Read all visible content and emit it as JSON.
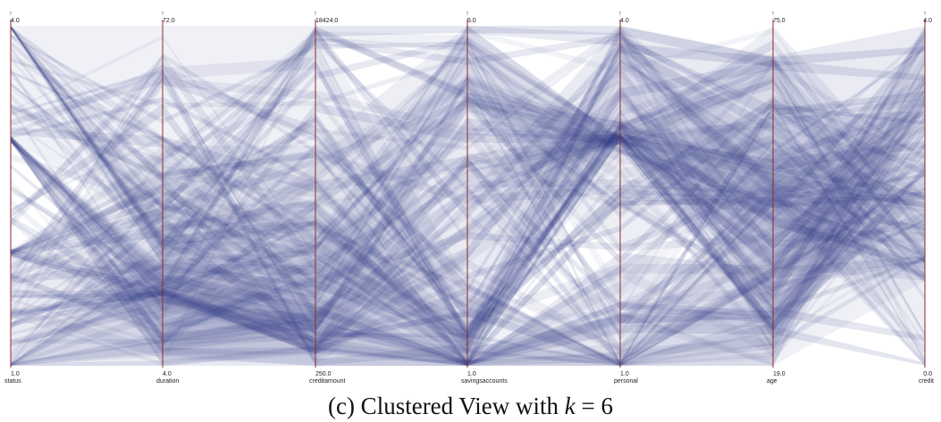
{
  "caption": {
    "prefix": "(c)  Clustered View with ",
    "variable": "k",
    "suffix": " = 6"
  },
  "chart_data": {
    "type": "parallel-coordinates",
    "line_color": "#2b3580",
    "axis_color": "#8b2b2b",
    "axes": [
      {
        "name": "status",
        "max": "4.0",
        "min": "1.0",
        "arrow": "↑"
      },
      {
        "name": "duration",
        "max": "72.0",
        "min": "4.0",
        "arrow": "↑"
      },
      {
        "name": "creditamount",
        "max": "18424.0",
        "min": "250.0",
        "arrow": "↑"
      },
      {
        "name": "savingsaccounts",
        "max": "5.0",
        "min": "1.0",
        "arrow": "↑"
      },
      {
        "name": "personal",
        "max": "4.0",
        "min": "1.0",
        "arrow": "↑"
      },
      {
        "name": "age",
        "max": "75.0",
        "min": "19.0",
        "arrow": "↑"
      },
      {
        "name": "credit",
        "max": "4.0",
        "min": "0.0",
        "arrow": "↑"
      }
    ],
    "clusters": [
      {
        "values": [
          [
            4,
            4
          ],
          [
            24,
            36
          ],
          [
            4000,
            9000
          ],
          [
            1,
            1.5
          ],
          [
            3,
            4
          ],
          [
            35,
            55
          ],
          [
            1,
            2
          ]
        ],
        "opacity": 0.09
      },
      {
        "values": [
          [
            3,
            3
          ],
          [
            4,
            24
          ],
          [
            250,
            4000
          ],
          [
            1,
            1
          ],
          [
            1,
            2
          ],
          [
            19,
            35
          ],
          [
            3,
            4
          ]
        ],
        "opacity": 0.11
      },
      {
        "values": [
          [
            2,
            2
          ],
          [
            12,
            48
          ],
          [
            2000,
            12000
          ],
          [
            4,
            5
          ],
          [
            2,
            3
          ],
          [
            45,
            75
          ],
          [
            0,
            2
          ]
        ],
        "opacity": 0.08
      },
      {
        "values": [
          [
            1,
            1
          ],
          [
            4,
            30
          ],
          [
            1000,
            6000
          ],
          [
            3,
            5
          ],
          [
            3,
            3
          ],
          [
            25,
            60
          ],
          [
            2,
            3
          ]
        ],
        "opacity": 0.1
      },
      {
        "values": [
          [
            3,
            4
          ],
          [
            30,
            72
          ],
          [
            6000,
            18424
          ],
          [
            1,
            2
          ],
          [
            1,
            1
          ],
          [
            19,
            50
          ],
          [
            1,
            3
          ]
        ],
        "opacity": 0.07
      },
      {
        "values": [
          [
            1,
            2
          ],
          [
            6,
            20
          ],
          [
            250,
            3000
          ],
          [
            1,
            3
          ],
          [
            3,
            4
          ],
          [
            30,
            70
          ],
          [
            3,
            4
          ]
        ],
        "opacity": 0.1
      }
    ],
    "band_count": 130
  }
}
